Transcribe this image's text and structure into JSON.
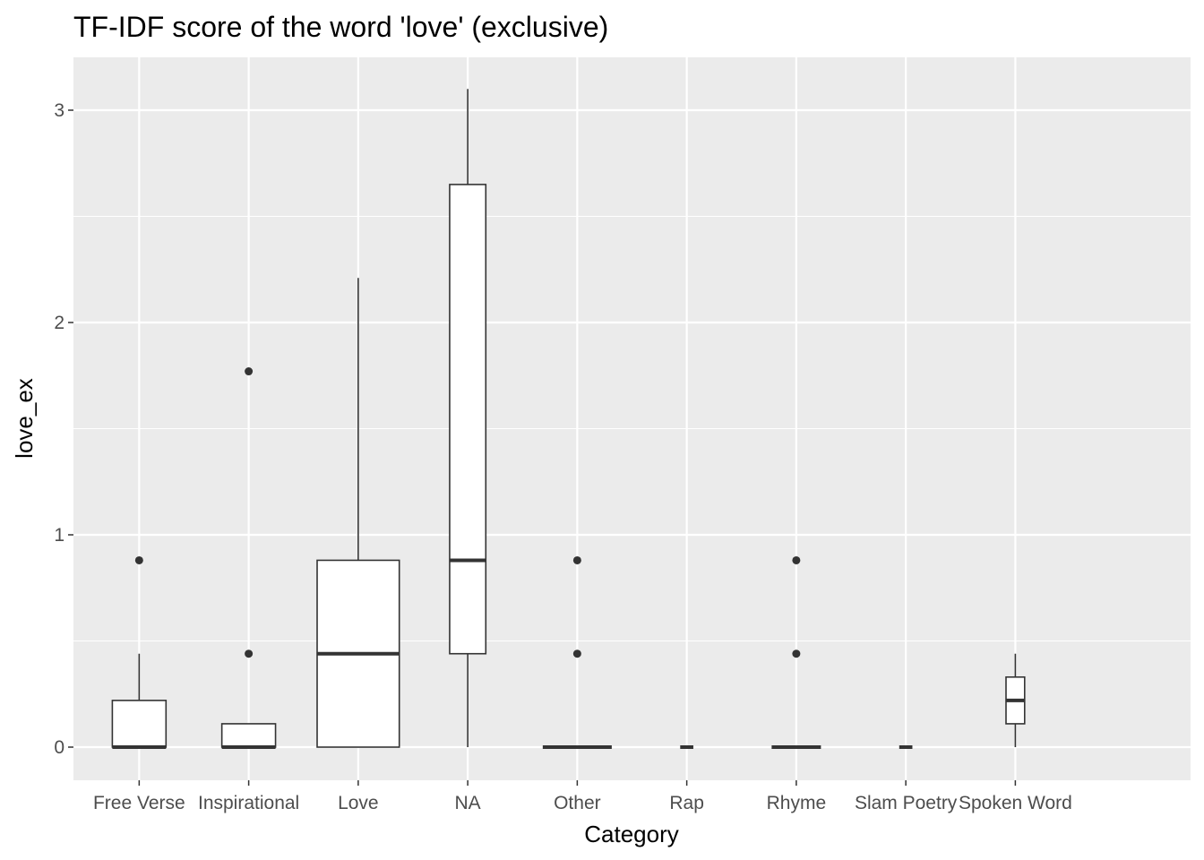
{
  "chart_data": {
    "type": "box",
    "title": "TF-IDF score of the word 'love' (exclusive)",
    "xlabel": "Category",
    "ylabel": "love_ex",
    "ylim": [
      -0.15,
      3.2
    ],
    "yticks": [
      0,
      1,
      2,
      3
    ],
    "grid": true,
    "colors": {
      "panel": "#ebebeb",
      "grid": "#ffffff",
      "box_fill": "#ffffff",
      "box_stroke": "#333333",
      "outlier": "#333333"
    },
    "categories": [
      "Free Verse",
      "Inspirational",
      "Love",
      "NA",
      "Other",
      "Rap",
      "Rhyme",
      "Slam Poetry",
      "Spoken Word"
    ],
    "boxes": [
      {
        "category": "Free Verse",
        "width": 0.49,
        "whisker_low": 0,
        "q1": 0,
        "median": 0,
        "q3": 0.22,
        "whisker_high": 0.44,
        "outliers": [
          0.88
        ]
      },
      {
        "category": "Inspirational",
        "width": 0.49,
        "whisker_low": 0,
        "q1": 0,
        "median": 0,
        "q3": 0.11,
        "whisker_high": 0.11,
        "outliers": [
          0.44,
          1.77
        ]
      },
      {
        "category": "Love",
        "width": 0.75,
        "whisker_low": 0,
        "q1": 0,
        "median": 0.44,
        "q3": 0.88,
        "whisker_high": 2.21,
        "outliers": []
      },
      {
        "category": "NA",
        "width": 0.33,
        "whisker_low": 0,
        "q1": 0.44,
        "median": 0.88,
        "q3": 2.65,
        "whisker_high": 3.1,
        "outliers": []
      },
      {
        "category": "Other",
        "width": 0.63,
        "whisker_low": 0,
        "q1": 0,
        "median": 0,
        "q3": 0,
        "whisker_high": 0,
        "outliers": [
          0.44,
          0.88
        ]
      },
      {
        "category": "Rap",
        "width": 0.12,
        "whisker_low": 0,
        "q1": 0,
        "median": 0,
        "q3": 0,
        "whisker_high": 0,
        "outliers": []
      },
      {
        "category": "Rhyme",
        "width": 0.45,
        "whisker_low": 0,
        "q1": 0,
        "median": 0,
        "q3": 0,
        "whisker_high": 0,
        "outliers": [
          0.44,
          0.88
        ]
      },
      {
        "category": "Slam Poetry",
        "width": 0.12,
        "whisker_low": 0,
        "q1": 0,
        "median": 0,
        "q3": 0,
        "whisker_high": 0,
        "outliers": []
      },
      {
        "category": "Spoken Word",
        "width": 0.17,
        "whisker_low": 0,
        "q1": 0.11,
        "median": 0.22,
        "q3": 0.33,
        "whisker_high": 0.44,
        "outliers": []
      }
    ]
  }
}
